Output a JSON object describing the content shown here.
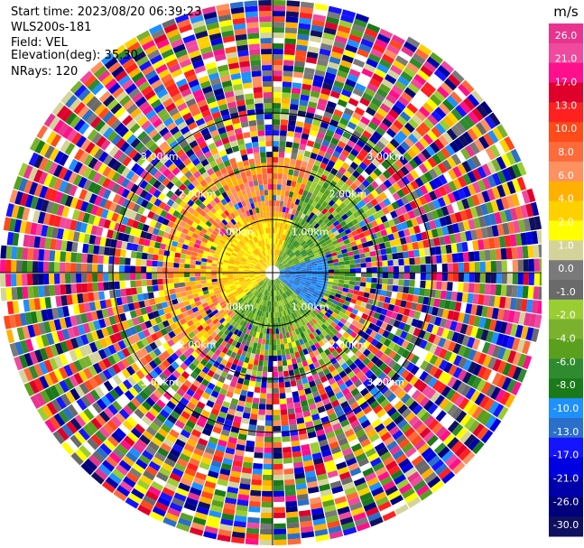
{
  "header": {
    "start_time": "Start time: 2023/08/20 06:39:23",
    "instrument": "WLS200s-181",
    "field": "Field: VEL",
    "elevation": "Elevation(deg): 35.30",
    "nrays": "NRays: 120"
  },
  "colorbar": {
    "unit": "m/s",
    "ticks": [
      "26.0",
      "21.0",
      "17.0",
      "13.0",
      "10.0",
      "8.0",
      "6.0",
      "4.0",
      "2.0",
      "1.0",
      "0.0",
      "-1.0",
      "-2.0",
      "-4.0",
      "-6.0",
      "-8.0",
      "-10.0",
      "-13.0",
      "-17.0",
      "-21.0",
      "-26.0",
      "-30.0"
    ],
    "colors": [
      "#e8348f",
      "#f04a9e",
      "#ff0f8c",
      "#e0002c",
      "#ff2020",
      "#ff4a1a",
      "#ff6a3a",
      "#ff9060",
      "#ffb000",
      "#ffd000",
      "#ffff00",
      "#d4d49a",
      "#7a7a7a",
      "#6a6a6a",
      "#9acd32",
      "#7ab22e",
      "#5aa01e",
      "#2e8b2e",
      "#1a7a1a",
      "#1e90ff",
      "#2a6fc9",
      "#1414ff",
      "#0000e0",
      "#0000aa",
      "#00007a",
      "#101060"
    ]
  },
  "chart_data": {
    "type": "heatmap",
    "projection": "polar-ppi",
    "field": "VEL",
    "unit": "m/s",
    "nrays": 120,
    "elevation_deg": 35.3,
    "range_ring_labels": [
      "1.00km",
      "2.00km",
      "3.00km"
    ],
    "range_rings_km": [
      1,
      2,
      3
    ],
    "max_range_km": 3.5,
    "value_range": [
      -30,
      26
    ]
  }
}
